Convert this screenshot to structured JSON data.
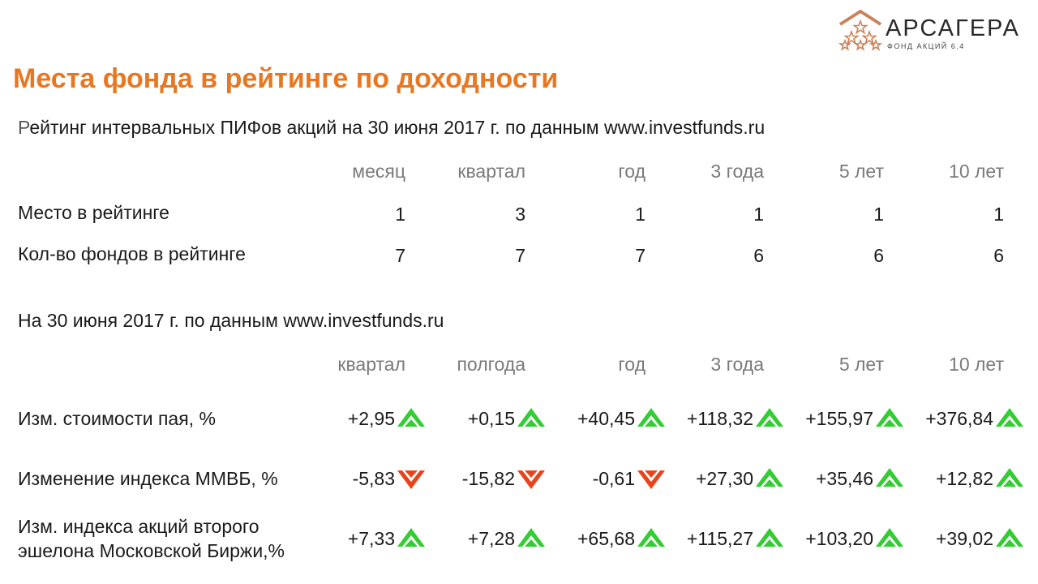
{
  "logo": {
    "name": "АРСАГЕРА",
    "subtitle": "ФОНД АКЦИЙ 6.4"
  },
  "title": "Места фонда в рейтинге по доходности",
  "rating": {
    "caption": "Рейтинг интервальных ПИФов акций на 30 июня 2017 г. по данным www.investfunds.ru",
    "columns": [
      "месяц",
      "квартал",
      "год",
      "3 года",
      "5 лет",
      "10 лет"
    ],
    "rows": [
      {
        "label": "Место в рейтинге",
        "values": [
          "1",
          "3",
          "1",
          "1",
          "1",
          "1"
        ]
      },
      {
        "label": "Кол-во фондов в рейтинге",
        "values": [
          "7",
          "7",
          "7",
          "6",
          "6",
          "6"
        ]
      }
    ]
  },
  "returns": {
    "caption": "На 30 июня 2017 г. по данным www.investfunds.ru",
    "columns": [
      "квартал",
      "полгода",
      "год",
      "3 года",
      "5 лет",
      "10 лет"
    ],
    "rows": [
      {
        "label_lines": [
          "Изм. стоимости пая, %"
        ],
        "values": [
          "+2,95",
          "+0,15",
          "+40,45",
          "+118,32",
          "+155,97",
          "+376,84"
        ],
        "directions": [
          "up",
          "up",
          "up",
          "up",
          "up",
          "up"
        ]
      },
      {
        "label_lines": [
          "Изменение индекса ММВБ, %"
        ],
        "values": [
          "-5,83",
          "-15,82",
          "-0,61",
          "+27,30",
          "+35,46",
          "+12,82"
        ],
        "directions": [
          "down",
          "down",
          "down",
          "up",
          "up",
          "up"
        ]
      },
      {
        "label_lines": [
          "Изм. индекса акций второго",
          "эшелона Московской Биржи,%"
        ],
        "values": [
          "+7,33",
          "+7,28",
          "+65,68",
          "+115,27",
          "+103,20",
          "+39,02"
        ],
        "directions": [
          "up",
          "up",
          "up",
          "up",
          "up",
          "up"
        ]
      }
    ]
  },
  "colors": {
    "accent": "#e87722",
    "up": "#33cc33",
    "down": "#e8441c"
  },
  "icons": {
    "up": "green-up-arrow-icon",
    "down": "red-down-arrow-icon"
  }
}
